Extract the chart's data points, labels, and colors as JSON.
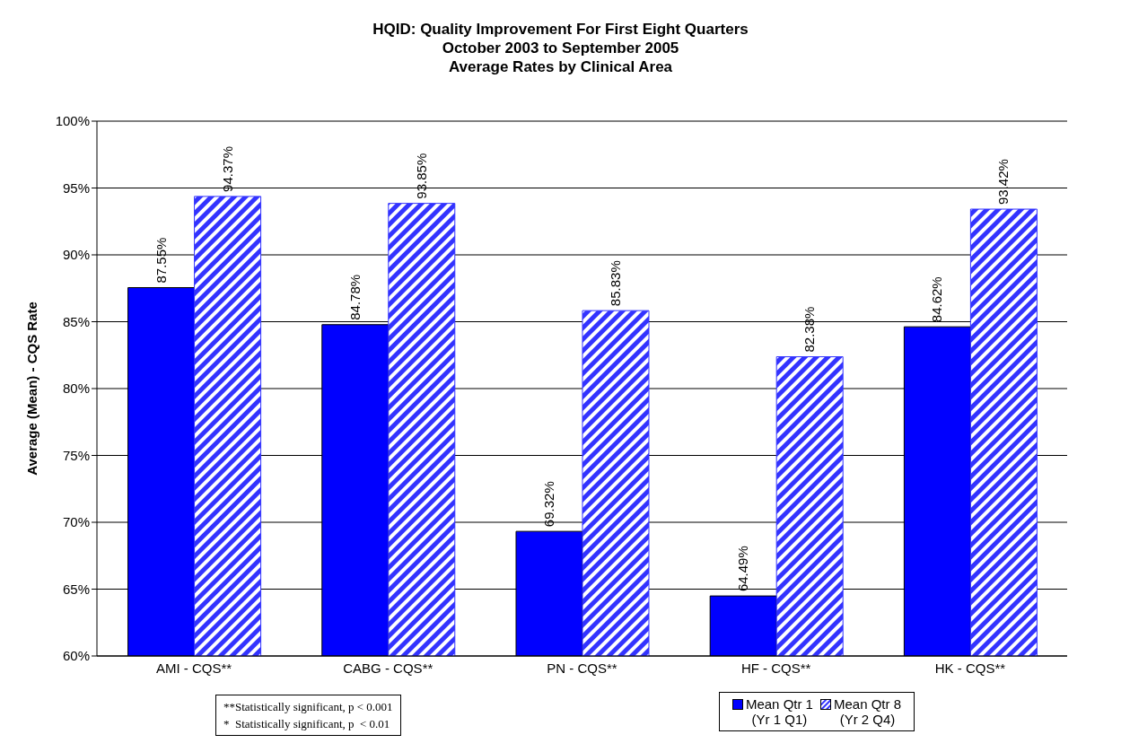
{
  "chart_data": {
    "type": "bar",
    "title": "HQID: Quality Improvement For First Eight Quarters",
    "subtitle": "October 2003 to September 2005\nAverage Rates by Clinical Area",
    "ylabel": "Average (Mean) - CQS Rate",
    "categories": [
      "AMI - CQS**",
      "CABG - CQS**",
      "PN - CQS**",
      "HF - CQS**",
      "HK - CQS**"
    ],
    "series": [
      {
        "name": "Mean Qtr 1\n(Yr 1 Q1)",
        "color": "#0000ff",
        "values": [
          87.55,
          84.78,
          69.32,
          64.49,
          84.62
        ],
        "value_labels": [
          "87.55%",
          "84.78%",
          "69.32%",
          "64.49%",
          "84.62%"
        ]
      },
      {
        "name": "Mean Qtr 8\n(Yr 2 Q4)",
        "color": "#3333ff",
        "values": [
          94.37,
          93.85,
          85.83,
          82.38,
          93.42
        ],
        "value_labels": [
          "94.37%",
          "93.85%",
          "85.83%",
          "82.38%",
          "93.42%"
        ]
      }
    ],
    "ylim": [
      60,
      100
    ],
    "yticks": [
      {
        "value": 60,
        "label": "60%"
      },
      {
        "value": 65,
        "label": "65%"
      },
      {
        "value": 70,
        "label": "70%"
      },
      {
        "value": 75,
        "label": "75%"
      },
      {
        "value": 80,
        "label": "80%"
      },
      {
        "value": 85,
        "label": "85%"
      },
      {
        "value": 90,
        "label": "90%"
      },
      {
        "value": 95,
        "label": "95%"
      },
      {
        "value": 100,
        "label": "100%"
      }
    ],
    "grid": "y",
    "legend": "bottom right",
    "annotations": [
      "**Statistically significant, p < 0.001",
      "*  Statistically significant, p  < 0.01"
    ]
  }
}
